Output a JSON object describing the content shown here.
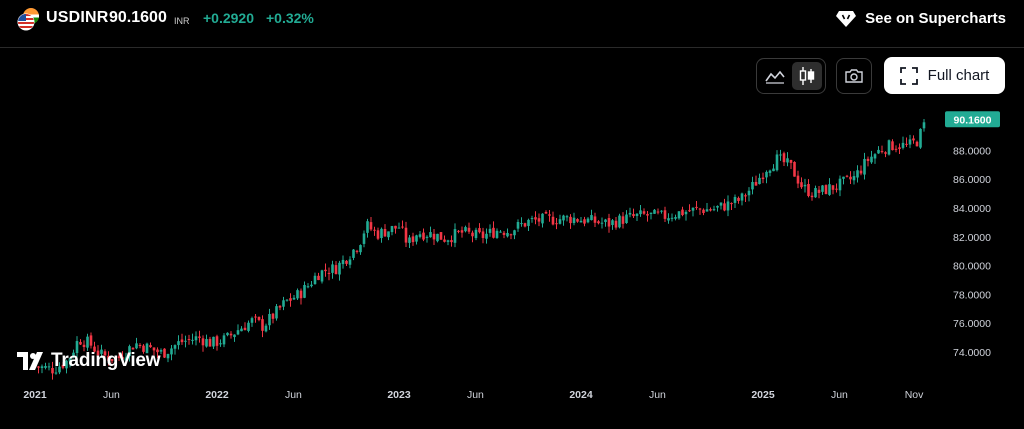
{
  "header": {
    "symbol": "USDINR",
    "price": "90.1600",
    "currency": "INR",
    "change": "+0.2920",
    "change_pct": "+0.32%",
    "see_on_label": "See on Supercharts"
  },
  "toolbar": {
    "line_icon": "line-chart-icon",
    "candle_icon": "candlestick-icon",
    "camera_icon": "camera-icon",
    "fullchart_icon": "fullscreen-icon",
    "fullchart_label": "Full chart"
  },
  "logo": {
    "text": "TradingView"
  },
  "colors": {
    "up": "#22ab94",
    "down": "#f23645",
    "label_bg": "#22ab94"
  },
  "chart_data": {
    "type": "candlestick",
    "symbol": "USDINR",
    "interval": "weekly",
    "last_price": "90.1600",
    "ylim": [
      72.5,
      91.5
    ],
    "y_ticks": [
      "74.0000",
      "76.0000",
      "78.0000",
      "80.0000",
      "82.0000",
      "84.0000",
      "86.0000",
      "88.0000"
    ],
    "y_tick_values": [
      74,
      76,
      78,
      80,
      82,
      84,
      86,
      88
    ],
    "x_ticks": [
      {
        "label": "2021",
        "t": 2021.0,
        "major": true
      },
      {
        "label": "Jun",
        "t": 2021.42,
        "major": false
      },
      {
        "label": "2022",
        "t": 2022.0,
        "major": true
      },
      {
        "label": "Jun",
        "t": 2022.42,
        "major": false
      },
      {
        "label": "2023",
        "t": 2023.0,
        "major": true
      },
      {
        "label": "Jun",
        "t": 2023.42,
        "major": false
      },
      {
        "label": "2024",
        "t": 2024.0,
        "major": true
      },
      {
        "label": "Jun",
        "t": 2024.42,
        "major": false
      },
      {
        "label": "2025",
        "t": 2025.0,
        "major": true
      },
      {
        "label": "Jun",
        "t": 2025.42,
        "major": false
      },
      {
        "label": "Nov",
        "t": 2025.83,
        "major": false
      }
    ],
    "xlim": [
      2020.95,
      2025.95
    ],
    "path": [
      [
        2021.0,
        73.0
      ],
      [
        2021.1,
        72.8
      ],
      [
        2021.18,
        73.4
      ],
      [
        2021.24,
        74.9
      ],
      [
        2021.3,
        74.6
      ],
      [
        2021.36,
        73.8
      ],
      [
        2021.45,
        73.5
      ],
      [
        2021.55,
        74.6
      ],
      [
        2021.62,
        74.3
      ],
      [
        2021.7,
        73.9
      ],
      [
        2021.8,
        74.7
      ],
      [
        2021.9,
        75.0
      ],
      [
        2021.97,
        74.6
      ],
      [
        2022.05,
        74.9
      ],
      [
        2022.12,
        75.6
      ],
      [
        2022.2,
        76.2
      ],
      [
        2022.25,
        75.8
      ],
      [
        2022.3,
        76.4
      ],
      [
        2022.38,
        77.5
      ],
      [
        2022.45,
        78.0
      ],
      [
        2022.5,
        78.6
      ],
      [
        2022.55,
        79.4
      ],
      [
        2022.6,
        79.7
      ],
      [
        2022.65,
        79.8
      ],
      [
        2022.7,
        80.4
      ],
      [
        2022.78,
        81.5
      ],
      [
        2022.82,
        82.8
      ],
      [
        2022.88,
        82.2
      ],
      [
        2022.95,
        82.5
      ],
      [
        2023.0,
        82.7
      ],
      [
        2023.05,
        81.5
      ],
      [
        2023.1,
        82.3
      ],
      [
        2023.18,
        82.2
      ],
      [
        2023.25,
        81.9
      ],
      [
        2023.35,
        82.3
      ],
      [
        2023.45,
        82.0
      ],
      [
        2023.55,
        82.5
      ],
      [
        2023.6,
        82.4
      ],
      [
        2023.65,
        82.7
      ],
      [
        2023.72,
        83.1
      ],
      [
        2023.82,
        83.2
      ],
      [
        2023.95,
        83.3
      ],
      [
        2024.05,
        83.1
      ],
      [
        2024.15,
        82.9
      ],
      [
        2024.25,
        83.3
      ],
      [
        2024.35,
        83.5
      ],
      [
        2024.45,
        83.4
      ],
      [
        2024.55,
        83.7
      ],
      [
        2024.65,
        83.9
      ],
      [
        2024.72,
        83.9
      ],
      [
        2024.8,
        84.2
      ],
      [
        2024.88,
        84.6
      ],
      [
        2024.95,
        85.6
      ],
      [
        2025.02,
        86.8
      ],
      [
        2025.08,
        87.4
      ],
      [
        2025.15,
        86.9
      ],
      [
        2025.22,
        85.4
      ],
      [
        2025.28,
        85.0
      ],
      [
        2025.35,
        85.3
      ],
      [
        2025.42,
        85.6
      ],
      [
        2025.5,
        86.1
      ],
      [
        2025.58,
        87.4
      ],
      [
        2025.65,
        88.1
      ],
      [
        2025.72,
        88.4
      ],
      [
        2025.8,
        88.3
      ],
      [
        2025.85,
        88.7
      ],
      [
        2025.9,
        90.16
      ]
    ]
  }
}
